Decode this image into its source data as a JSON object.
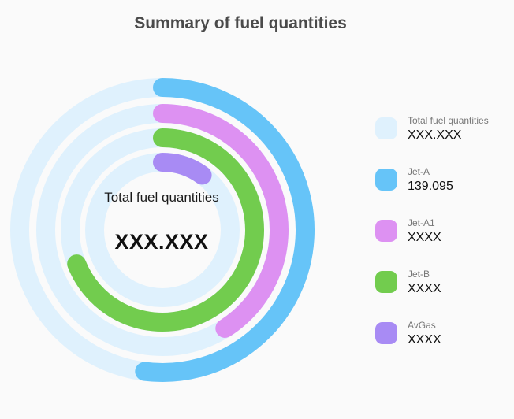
{
  "title": "Summary of fuel quantities",
  "center": {
    "label": "Total fuel quantities",
    "value": "XXX.XXX"
  },
  "chart_data": {
    "type": "radial-bar",
    "track_color": "#dff1fd",
    "series": [
      {
        "name": "Jet-A",
        "display": "139.095",
        "fraction": 0.52,
        "color": "#66c4f8"
      },
      {
        "name": "Jet-A1",
        "display": "XXXX",
        "fraction": 0.41,
        "color": "#dd91f2"
      },
      {
        "name": "Jet-B",
        "display": "XXXX",
        "fraction": 0.69,
        "color": "#72cc4e"
      },
      {
        "name": "AvGas",
        "display": "XXXX",
        "fraction": 0.1,
        "color": "#a88bf4"
      }
    ]
  },
  "legend": [
    {
      "name": "Total fuel quantities",
      "value": "XXX.XXX",
      "color": "#dff1fd"
    },
    {
      "name": "Jet-A",
      "value": "139.095",
      "color": "#66c4f8"
    },
    {
      "name": "Jet-A1",
      "value": "XXXX",
      "color": "#dd91f2"
    },
    {
      "name": "Jet-B",
      "value": "XXXX",
      "color": "#72cc4e"
    },
    {
      "name": "AvGas",
      "value": "XXXX",
      "color": "#a88bf4"
    }
  ]
}
